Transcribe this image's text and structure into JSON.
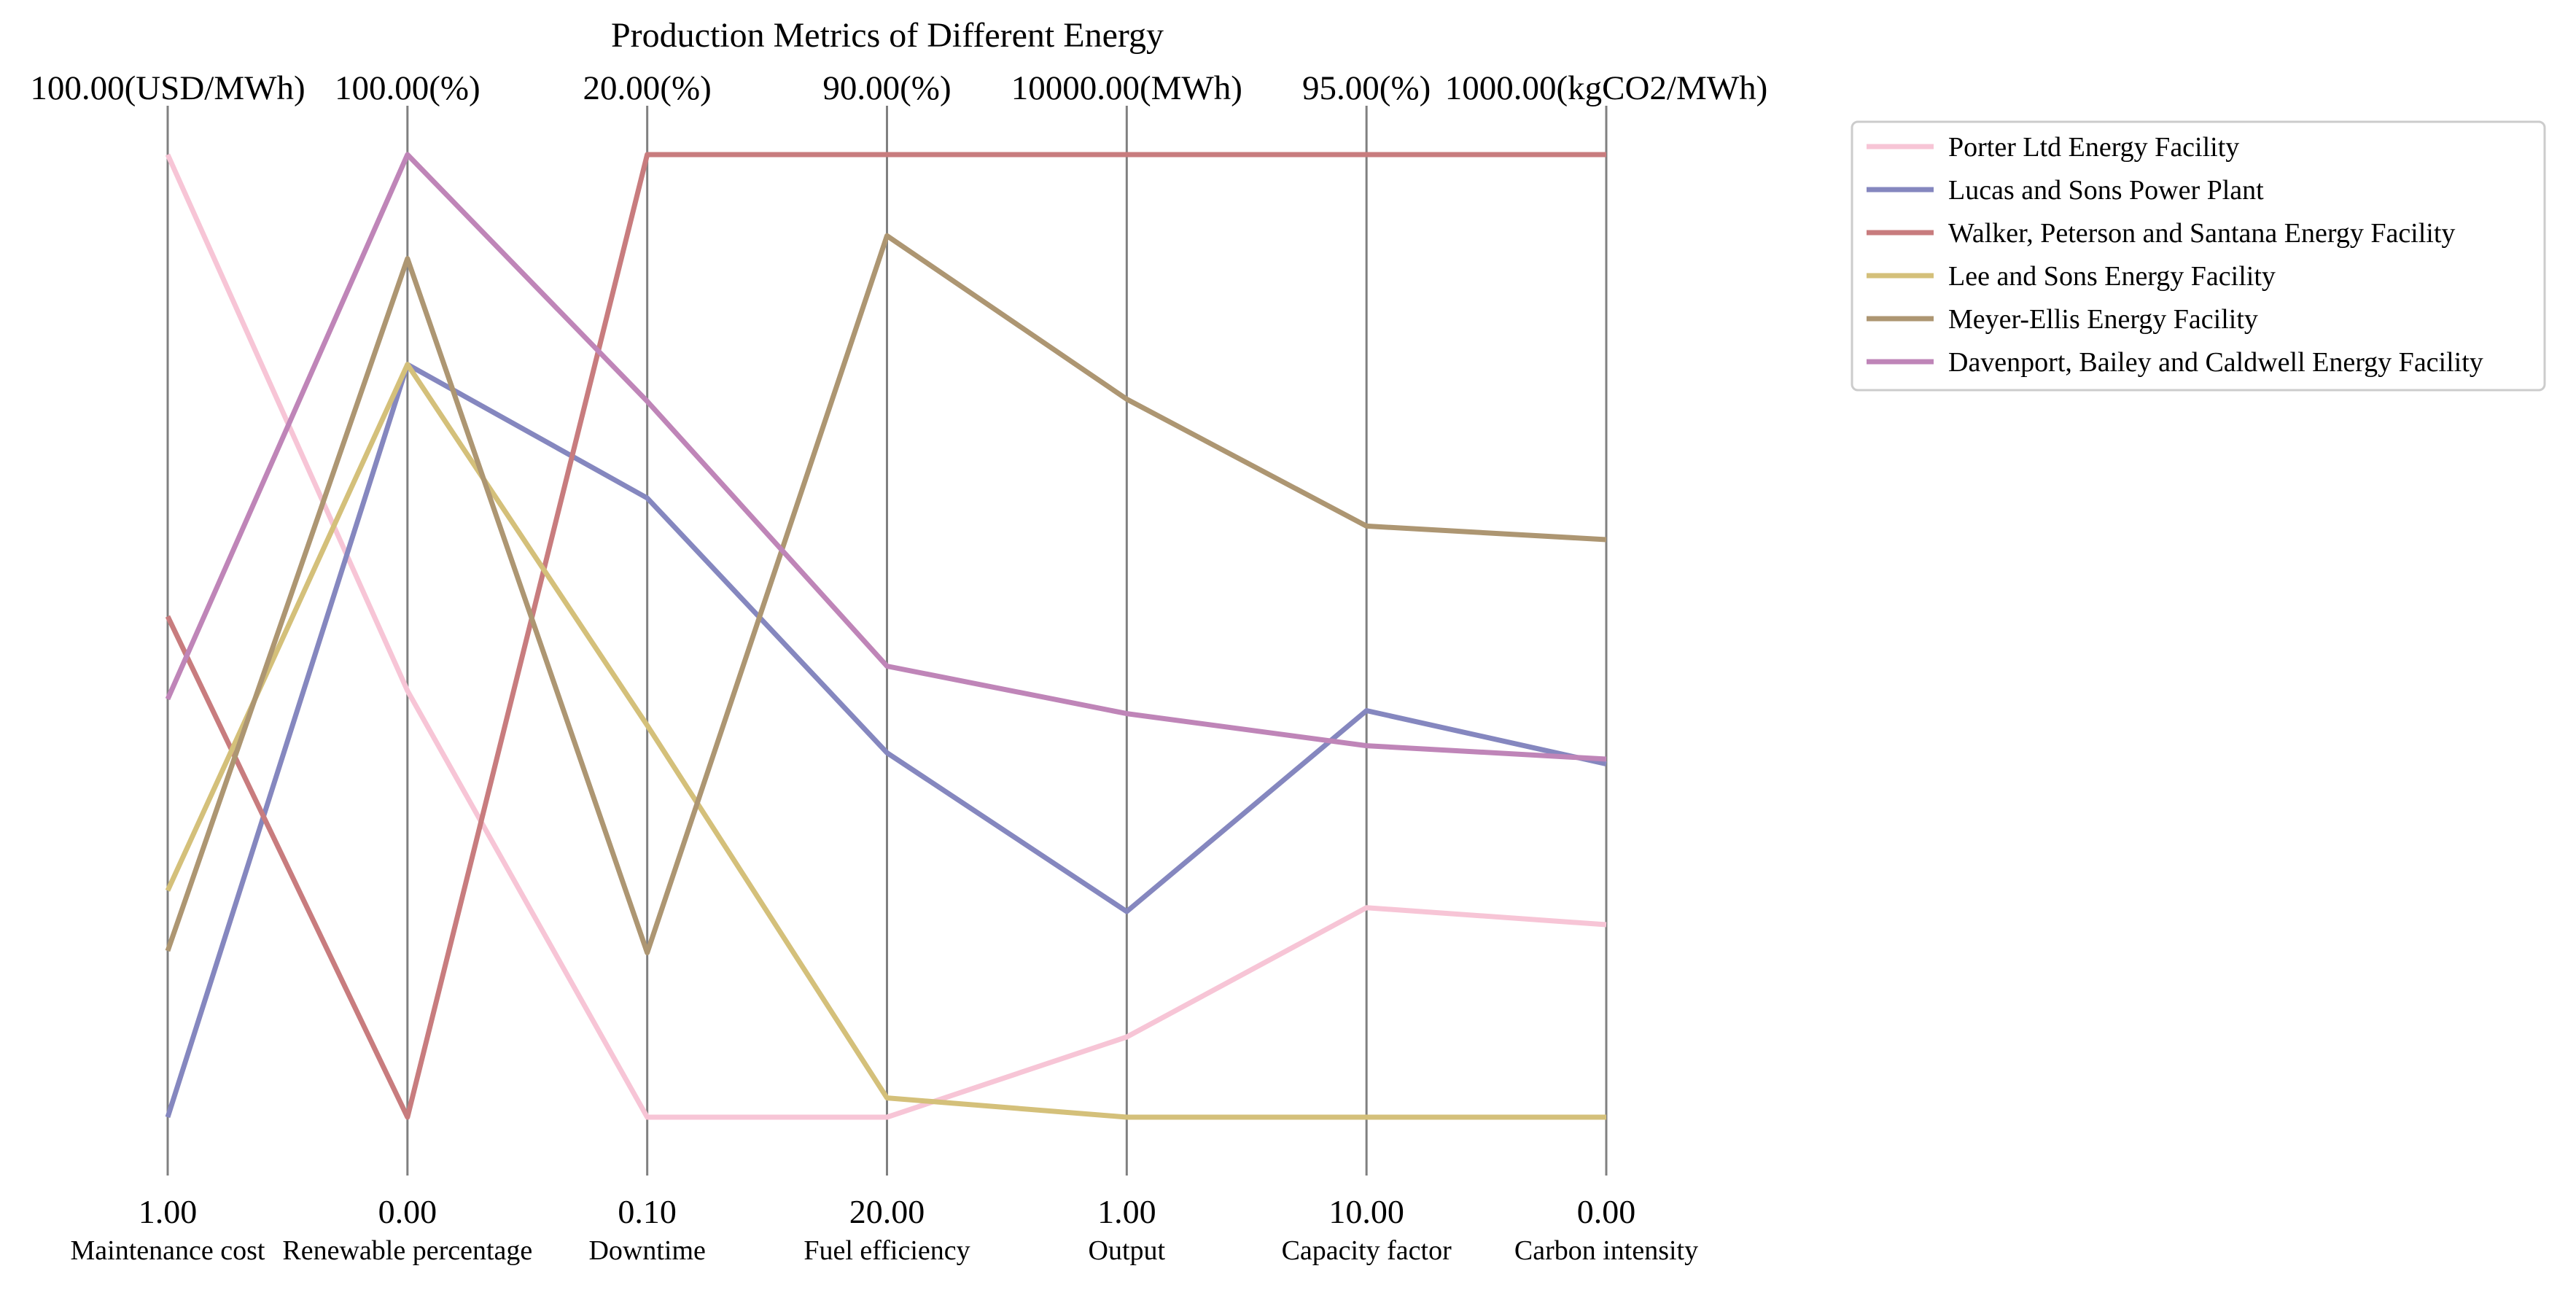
{
  "chart_data": {
    "type": "parallel_coordinates",
    "title": "Production Metrics of Different Energy",
    "axes": [
      {
        "name": "Maintenance cost",
        "min_label": "1.00",
        "max_label": "100.00(USD/MWh)",
        "min": 1,
        "max": 100,
        "unit": "USD/MWh"
      },
      {
        "name": "Renewable percentage",
        "min_label": "0.00",
        "max_label": "100.00(%)",
        "min": 0,
        "max": 100,
        "unit": "%"
      },
      {
        "name": "Downtime",
        "min_label": "0.10",
        "max_label": "20.00(%)",
        "min": 0.1,
        "max": 20,
        "unit": "%"
      },
      {
        "name": "Fuel efficiency",
        "min_label": "20.00",
        "max_label": "90.00(%)",
        "min": 20,
        "max": 90,
        "unit": "%"
      },
      {
        "name": "Output",
        "min_label": "1.00",
        "max_label": "10000.00(MWh)",
        "min": 1,
        "max": 10000,
        "unit": "MWh"
      },
      {
        "name": "Capacity factor",
        "min_label": "10.00",
        "max_label": "95.00(%)",
        "min": 10,
        "max": 95,
        "unit": "%"
      },
      {
        "name": "Carbon intensity",
        "min_label": "0.00",
        "max_label": "1000.00(kgCO2/MWh)",
        "min": 0,
        "max": 1000,
        "unit": "kgCO2/MWh"
      }
    ],
    "series": [
      {
        "name": "Porter Ltd  Energy Facility",
        "color": "#f7c5d6",
        "values": [
          100,
          44.3,
          0.1,
          20,
          834,
          28.5,
          200
        ]
      },
      {
        "name": "Lucas and Sons  Power Plant",
        "color": "#8587bf",
        "values": [
          1,
          78.2,
          12.9,
          46.5,
          2137,
          45.9,
          367
        ]
      },
      {
        "name": "Walker, Peterson and Santana  Energy Facility",
        "color": "#c87c7e",
        "values": [
          52.5,
          0,
          20,
          90,
          10000,
          95,
          1000
        ]
      },
      {
        "name": "Lee and Sons  Energy Facility",
        "color": "#d4c07a",
        "values": [
          24.3,
          78.2,
          8.2,
          21.4,
          1,
          10,
          0
        ]
      },
      {
        "name": "Meyer-Ellis  Energy Facility",
        "color": "#ad9672",
        "values": [
          18.1,
          89.2,
          3.5,
          84.1,
          7459,
          62.2,
          600
        ]
      },
      {
        "name": "Davenport, Bailey and Caldwell  Energy Facility",
        "color": "#bf85b8",
        "values": [
          44,
          100,
          14.9,
          52.8,
          4193,
          42.8,
          372
        ]
      }
    ],
    "legend_position": "outside-right",
    "grid": false
  }
}
